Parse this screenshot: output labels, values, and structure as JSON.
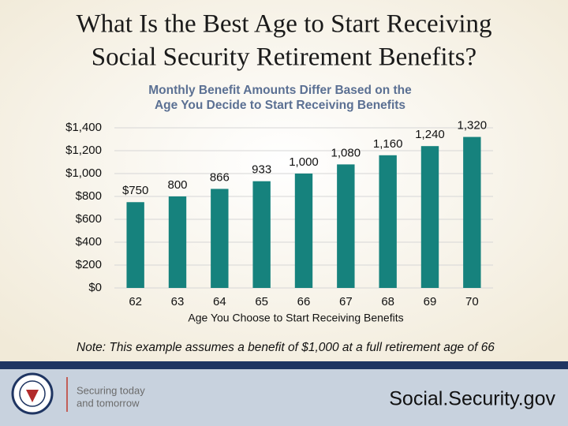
{
  "title": [
    "What Is the Best Age to Start Receiving",
    "Social Security Retirement Benefits?"
  ],
  "chart_data": {
    "type": "bar",
    "title": [
      "Monthly Benefit Amounts Differ Based on the",
      "Age You Decide to Start Receiving Benefits"
    ],
    "categories": [
      "62",
      "63",
      "64",
      "65",
      "66",
      "67",
      "68",
      "69",
      "70"
    ],
    "values": [
      750,
      800,
      866,
      933,
      1000,
      1080,
      1160,
      1240,
      1320
    ],
    "value_labels": [
      "$750",
      "800",
      "866",
      "933",
      "1,000",
      "1,080",
      "1,160",
      "1,240",
      "1,320"
    ],
    "color": "#16827d",
    "xlabel": "Age You Choose to Start Receiving Benefits",
    "ylim": [
      0,
      1400
    ],
    "yticks": [
      {
        "value": 0,
        "label": "$0"
      },
      {
        "value": 200,
        "label": "$200"
      },
      {
        "value": 400,
        "label": "$400"
      },
      {
        "value": 600,
        "label": "$600"
      },
      {
        "value": 800,
        "label": "$800"
      },
      {
        "value": 1000,
        "label": "$1,000"
      },
      {
        "value": 1200,
        "label": "$1,200"
      },
      {
        "value": 1400,
        "label": "$1,400"
      }
    ],
    "grid": true
  },
  "note": "Note: This example assumes a benefit of $1,000 at a full retirement age of 66",
  "footer": {
    "tagline": [
      "Securing today",
      "and tomorrow"
    ],
    "website": "Social.Security.gov"
  }
}
